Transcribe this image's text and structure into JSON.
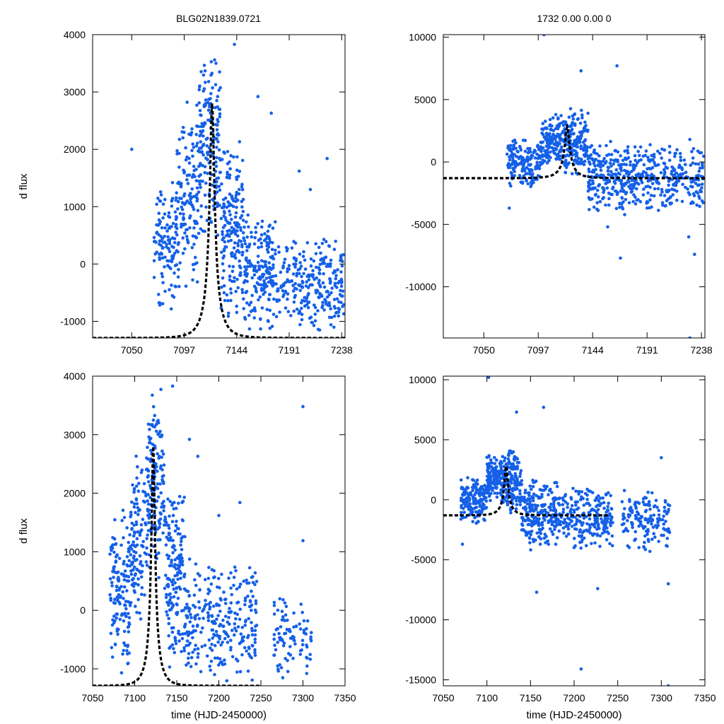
{
  "header": {
    "object_id": "BLG02N1839.0721",
    "fit_params": "1732  0.00  0.00  0"
  },
  "colors": {
    "points": "#1560e8",
    "model": "#000000",
    "axes": "#000000"
  },
  "chart_data": [
    {
      "type": "scatter",
      "panel": "top-left",
      "title": "",
      "xlabel": "",
      "ylabel": "d flux",
      "xlim": [
        7015,
        7241
      ],
      "ylim": [
        -1290,
        4000
      ],
      "xticks": [
        7050,
        7097,
        7144,
        7191,
        7238
      ],
      "yticks": [
        -1000,
        0,
        1000,
        2000,
        3000,
        4000
      ],
      "xtick_labels": [
        "7050",
        "7097",
        "7144",
        "7191",
        "7238"
      ],
      "ytick_labels": [
        "-1000",
        "0",
        "1000",
        "2000",
        "3000",
        "4000"
      ],
      "series": [
        {
          "name": "observations",
          "style": "points",
          "x_range": [
            7070,
            7240
          ],
          "clusters": [
            {
              "x": [
                7070,
                7090
              ],
              "y": [
                -1000,
                1700
              ],
              "n": 120
            },
            {
              "x": [
                7090,
                7110
              ],
              "y": [
                -600,
                2900
              ],
              "n": 140
            },
            {
              "x": [
                7110,
                7130
              ],
              "y": [
                400,
                3850
              ],
              "n": 170
            },
            {
              "x": [
                7130,
                7150
              ],
              "y": [
                -1100,
                2300
              ],
              "n": 170
            },
            {
              "x": [
                7150,
                7180
              ],
              "y": [
                -1200,
                900
              ],
              "n": 190
            },
            {
              "x": [
                7180,
                7240
              ],
              "y": [
                -1250,
                500
              ],
              "n": 260
            }
          ],
          "outliers": [
            [
              7050,
              2000
            ],
            [
              7142,
              3830
            ],
            [
              7163,
              2920
            ],
            [
              7175,
              2630
            ],
            [
              7200,
              1620
            ],
            [
              7225,
              1840
            ],
            [
              7210,
              1300
            ]
          ]
        },
        {
          "name": "PSPL model",
          "style": "dashed-line",
          "t0": 7122,
          "tE": 13,
          "peak": 2800,
          "baseline": -1290
        }
      ]
    },
    {
      "type": "scatter",
      "panel": "top-right",
      "title": "",
      "xlabel": "",
      "ylabel": "",
      "xlim": [
        7015,
        7241
      ],
      "ylim": [
        -14100,
        10200
      ],
      "xticks": [
        7050,
        7097,
        7144,
        7191,
        7238
      ],
      "yticks": [
        -10000,
        -5000,
        0,
        5000,
        10000
      ],
      "xtick_labels": [
        "7050",
        "7097",
        "7144",
        "7191",
        "7238"
      ],
      "ytick_labels": [
        "-10000",
        "-5000",
        "0",
        "5000",
        "10000"
      ],
      "series": [
        {
          "name": "observations",
          "style": "points",
          "x_range": [
            7070,
            7240
          ],
          "clusters": [
            {
              "x": [
                7070,
                7100
              ],
              "y": [
                -2200,
                2000
              ],
              "n": 170
            },
            {
              "x": [
                7100,
                7120
              ],
              "y": [
                -500,
                4000
              ],
              "n": 150
            },
            {
              "x": [
                7120,
                7140
              ],
              "y": [
                -1500,
                4700
              ],
              "n": 150
            },
            {
              "x": [
                7140,
                7175
              ],
              "y": [
                -4500,
                2000
              ],
              "n": 210
            },
            {
              "x": [
                7175,
                7240
              ],
              "y": [
                -4200,
                1500
              ],
              "n": 280
            }
          ],
          "outliers": [
            [
              7102,
              10200
            ],
            [
              7134,
              7300
            ],
            [
              7165,
              7700
            ],
            [
              7072,
              -3700
            ],
            [
              7157,
              -5200
            ],
            [
              7168,
              -7700
            ],
            [
              7227,
              -6000
            ],
            [
              7228,
              -14100
            ],
            [
              7232,
              -7400
            ],
            [
              7228,
              1800
            ]
          ]
        },
        {
          "name": "PSPL model",
          "style": "dashed-line",
          "t0": 7122,
          "tE": 13,
          "peak": 2800,
          "baseline": -1300
        }
      ]
    },
    {
      "type": "scatter",
      "panel": "bottom-left",
      "title": "",
      "xlabel": "time (HJD-2450000)",
      "ylabel": "d flux",
      "xlim": [
        7050,
        7350
      ],
      "ylim": [
        -1290,
        4000
      ],
      "xticks": [
        7050,
        7100,
        7150,
        7200,
        7250,
        7300,
        7350
      ],
      "yticks": [
        -1000,
        0,
        1000,
        2000,
        3000,
        4000
      ],
      "xtick_labels": [
        "7050",
        "7100",
        "7150",
        "7200",
        "7250",
        "7300",
        "7350"
      ],
      "ytick_labels": [
        "-1000",
        "0",
        "1000",
        "2000",
        "3000",
        "4000"
      ],
      "series": [
        {
          "name": "observations",
          "style": "points",
          "x_range": [
            7070,
            7310
          ],
          "clusters": [
            {
              "x": [
                7070,
                7095
              ],
              "y": [
                -1100,
                1800
              ],
              "n": 140
            },
            {
              "x": [
                7095,
                7115
              ],
              "y": [
                -300,
                2900
              ],
              "n": 120
            },
            {
              "x": [
                7115,
                7135
              ],
              "y": [
                500,
                3850
              ],
              "n": 150
            },
            {
              "x": [
                7135,
                7160
              ],
              "y": [
                -1200,
                2200
              ],
              "n": 170
            },
            {
              "x": [
                7160,
                7245
              ],
              "y": [
                -1250,
                900
              ],
              "n": 280
            },
            {
              "x": [
                7265,
                7310
              ],
              "y": [
                -1250,
                300
              ],
              "n": 90
            }
          ],
          "outliers": [
            [
              7145,
              3830
            ],
            [
              7165,
              2920
            ],
            [
              7175,
              2630
            ],
            [
              7200,
              1620
            ],
            [
              7225,
              1840
            ],
            [
              7300,
              3480
            ],
            [
              7300,
              1190
            ]
          ]
        },
        {
          "name": "PSPL model",
          "style": "dashed-line",
          "t0": 7122,
          "tE": 13,
          "peak": 2800,
          "baseline": -1290,
          "x_range": [
            7050,
            7250
          ]
        }
      ]
    },
    {
      "type": "scatter",
      "panel": "bottom-right",
      "title": "",
      "xlabel": "time (HJD-2450000)",
      "ylabel": "",
      "xlim": [
        7050,
        7350
      ],
      "ylim": [
        -15500,
        10300
      ],
      "xticks": [
        7050,
        7100,
        7150,
        7200,
        7250,
        7300,
        7350
      ],
      "yticks": [
        -15000,
        -10000,
        -5000,
        0,
        5000,
        10000
      ],
      "xtick_labels": [
        "7050",
        "7100",
        "7150",
        "7200",
        "7250",
        "7300",
        "7350"
      ],
      "ytick_labels": [
        "-15000",
        "-10000",
        "-5000",
        "0",
        "5000",
        "10000"
      ],
      "series": [
        {
          "name": "observations",
          "style": "points",
          "x_range": [
            7070,
            7310
          ],
          "clusters": [
            {
              "x": [
                7070,
                7100
              ],
              "y": [
                -2200,
                2000
              ],
              "n": 170
            },
            {
              "x": [
                7100,
                7120
              ],
              "y": [
                -500,
                4000
              ],
              "n": 140
            },
            {
              "x": [
                7120,
                7140
              ],
              "y": [
                -1500,
                4700
              ],
              "n": 150
            },
            {
              "x": [
                7140,
                7180
              ],
              "y": [
                -4500,
                2000
              ],
              "n": 220
            },
            {
              "x": [
                7180,
                7245
              ],
              "y": [
                -4200,
                1500
              ],
              "n": 240
            },
            {
              "x": [
                7255,
                7310
              ],
              "y": [
                -4500,
                1200
              ],
              "n": 150
            }
          ],
          "outliers": [
            [
              7102,
              10200
            ],
            [
              7134,
              7300
            ],
            [
              7165,
              7700
            ],
            [
              7072,
              -3700
            ],
            [
              7157,
              -7700
            ],
            [
              7227,
              -7400
            ],
            [
              7208,
              -14100
            ],
            [
              7308,
              -15500
            ],
            [
              7300,
              3500
            ],
            [
              7308,
              -7000
            ]
          ]
        },
        {
          "name": "PSPL model",
          "style": "dashed-line",
          "t0": 7122,
          "tE": 13,
          "peak": 2800,
          "baseline": -1300,
          "x_range": [
            7050,
            7240
          ]
        }
      ]
    }
  ]
}
